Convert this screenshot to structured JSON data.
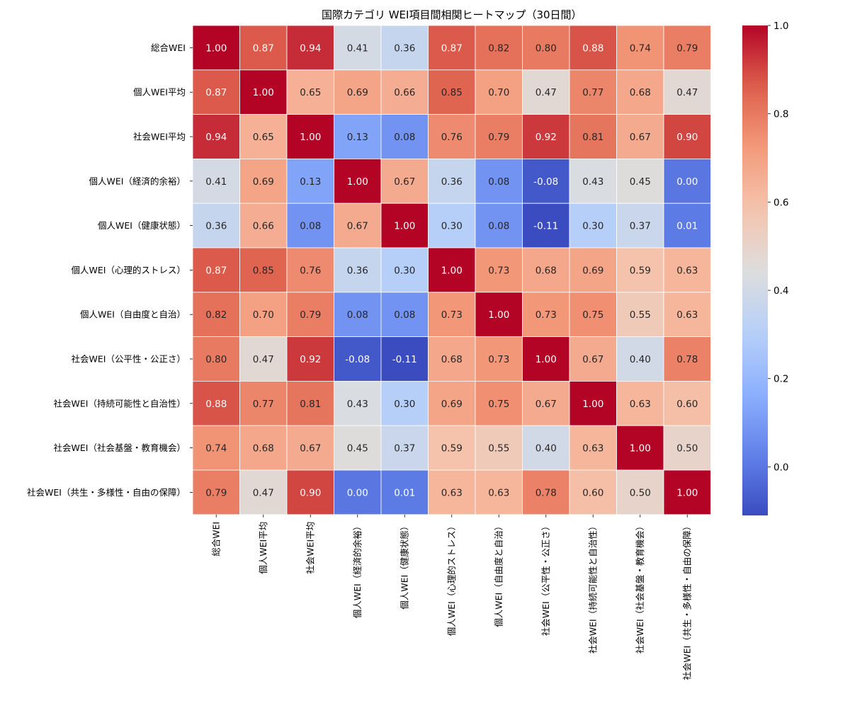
{
  "chart_data": {
    "type": "heatmap",
    "title": "国際カテゴリ WEI項目間相関ヒートマップ（30日間）",
    "row_labels": [
      "総合WEI",
      "個人WEI平均",
      "社会WEI平均",
      "個人WEI（経済的余裕）",
      "個人WEI（健康状態）",
      "個人WEI（心理的ストレス）",
      "個人WEI（自由度と自治）",
      "社会WEI（公平性・公正さ）",
      "社会WEI（持続可能性と自治性）",
      "社会WEI（社会基盤・教育機会）",
      "社会WEI（共生・多様性・自由の保障）"
    ],
    "col_labels": [
      "総合WEI",
      "個人WEI平均",
      "社会WEI平均",
      "個人WEI（経済的余裕）",
      "個人WEI（健康状態）",
      "個人WEI（心理的ストレス）",
      "個人WEI（自由度と自治）",
      "社会WEI（公平性・公正さ）",
      "社会WEI（持続可能性と自治性）",
      "社会WEI（社会基盤・教育機会）",
      "社会WEI（共生・多様性・自由の保障）"
    ],
    "values": [
      [
        1.0,
        0.87,
        0.94,
        0.41,
        0.36,
        0.87,
        0.82,
        0.8,
        0.88,
        0.74,
        0.79
      ],
      [
        0.87,
        1.0,
        0.65,
        0.69,
        0.66,
        0.85,
        0.7,
        0.47,
        0.77,
        0.68,
        0.47
      ],
      [
        0.94,
        0.65,
        1.0,
        0.13,
        0.08,
        0.76,
        0.79,
        0.92,
        0.81,
        0.67,
        0.9
      ],
      [
        0.41,
        0.69,
        0.13,
        1.0,
        0.67,
        0.36,
        0.08,
        -0.08,
        0.43,
        0.45,
        -0.0
      ],
      [
        0.36,
        0.66,
        0.08,
        0.67,
        1.0,
        0.3,
        0.08,
        -0.11,
        0.3,
        0.37,
        0.01
      ],
      [
        0.87,
        0.85,
        0.76,
        0.36,
        0.3,
        1.0,
        0.73,
        0.68,
        0.69,
        0.59,
        0.63
      ],
      [
        0.82,
        0.7,
        0.79,
        0.08,
        0.08,
        0.73,
        1.0,
        0.73,
        0.75,
        0.55,
        0.63
      ],
      [
        0.8,
        0.47,
        0.92,
        -0.08,
        -0.11,
        0.68,
        0.73,
        1.0,
        0.67,
        0.4,
        0.78
      ],
      [
        0.88,
        0.77,
        0.81,
        0.43,
        0.3,
        0.69,
        0.75,
        0.67,
        1.0,
        0.63,
        0.6
      ],
      [
        0.74,
        0.68,
        0.67,
        0.45,
        0.37,
        0.59,
        0.55,
        0.4,
        0.63,
        1.0,
        0.5
      ],
      [
        0.79,
        0.47,
        0.9,
        -0.0,
        0.01,
        0.63,
        0.63,
        0.78,
        0.6,
        0.5,
        1.0
      ]
    ],
    "value_format": "0.00",
    "colormap": "coolwarm",
    "vmin": -0.11,
    "vmax": 1.0,
    "colorbar_ticks": [
      0.0,
      0.2,
      0.4,
      0.6,
      0.8,
      1.0
    ],
    "colorbar_tick_labels": [
      "0.0",
      "0.2",
      "0.4",
      "0.6",
      "0.8",
      "1.0"
    ],
    "legend": "colorbar right",
    "grid": false
  }
}
